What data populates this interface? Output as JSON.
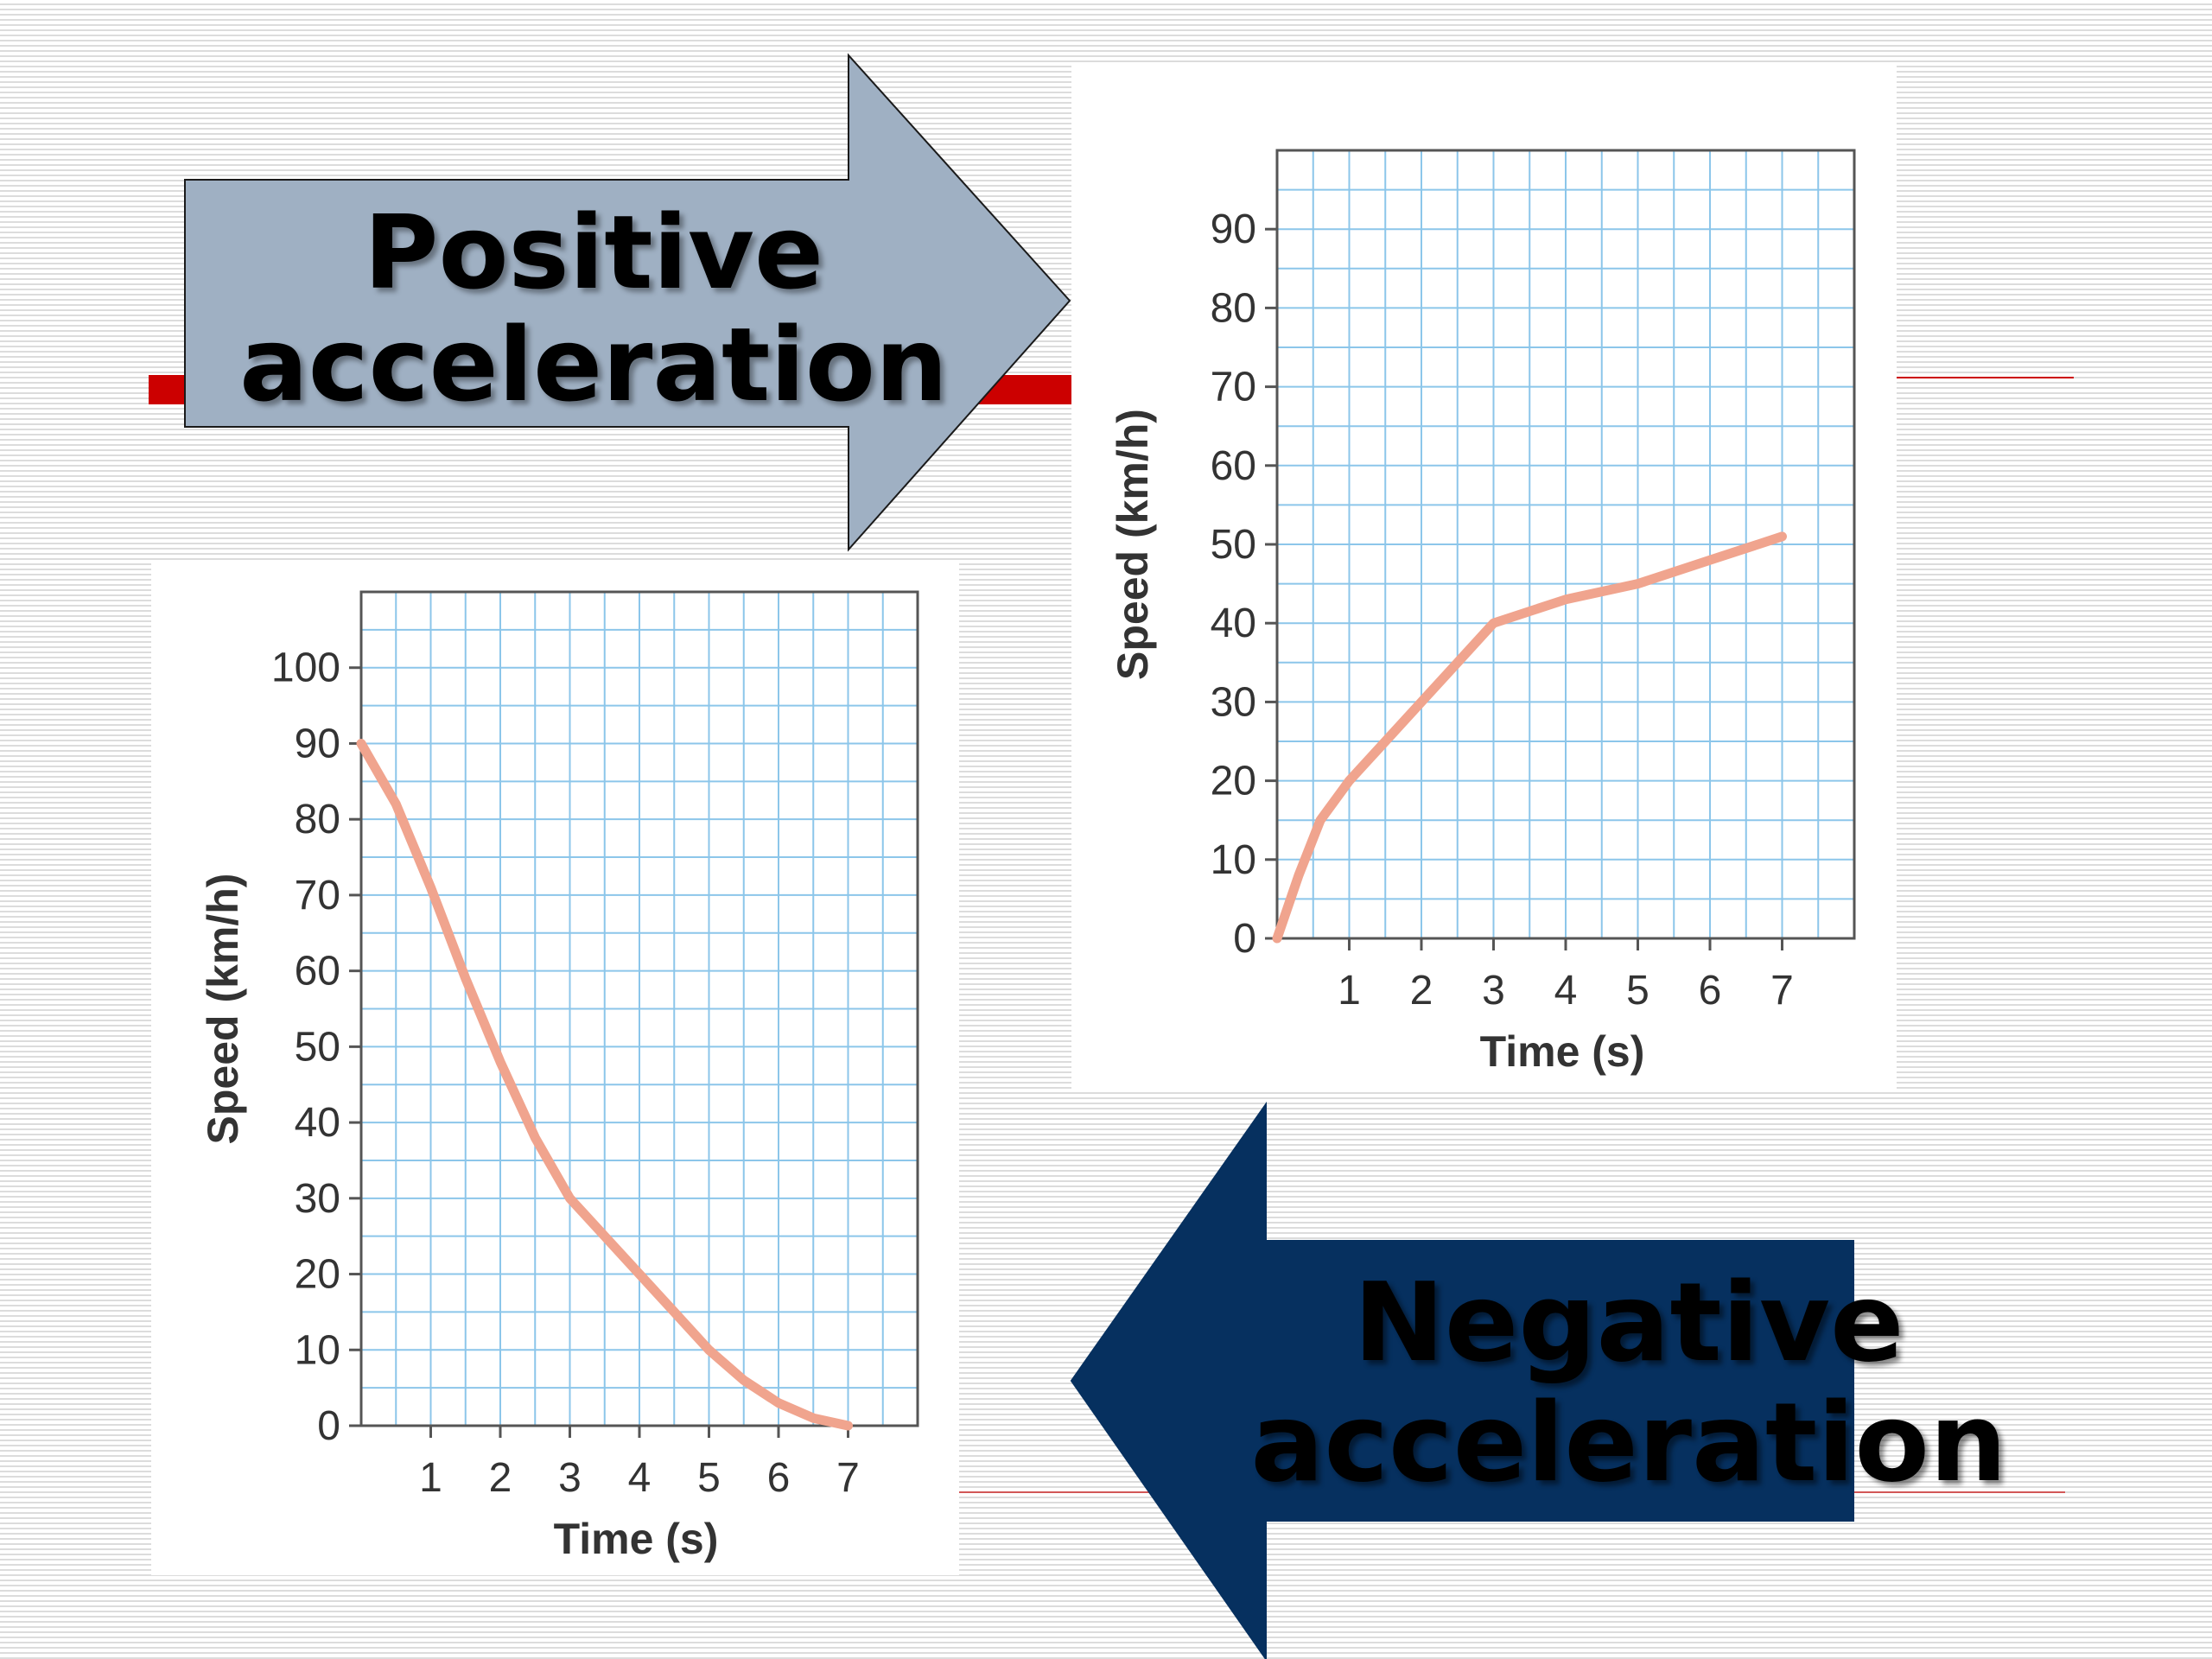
{
  "arrows": {
    "positive": {
      "line1": "Positive",
      "line2": "acceleration",
      "fill": "#9fb0c3"
    },
    "negative": {
      "line1": "Negative",
      "line2": "acceleration",
      "fill": "#06305f"
    }
  },
  "colors": {
    "grid": "#8cc6ea",
    "curve": "#f0a48e",
    "accent_line": "#cc0000"
  },
  "chart_data": [
    {
      "type": "line",
      "xlabel": "Time (s)",
      "ylabel": "Speed (km/h)",
      "x_ticks": [
        1,
        2,
        3,
        4,
        5,
        6,
        7
      ],
      "y_ticks": [
        0,
        10,
        20,
        30,
        40,
        50,
        60,
        70,
        80,
        90
      ],
      "xlim": [
        0,
        8
      ],
      "ylim": [
        0,
        100
      ],
      "grid": true,
      "series": [
        {
          "x": [
            0,
            0.3,
            0.6,
            1,
            1.5,
            2,
            2.5,
            3,
            4,
            5,
            6,
            7
          ],
          "y": [
            0,
            8,
            15,
            20,
            25,
            30,
            35,
            40,
            43,
            45,
            48,
            51
          ]
        }
      ]
    },
    {
      "type": "line",
      "xlabel": "Time (s)",
      "ylabel": "Speed (km/h)",
      "x_ticks": [
        1,
        2,
        3,
        4,
        5,
        6,
        7
      ],
      "y_ticks": [
        0,
        10,
        20,
        30,
        40,
        50,
        60,
        70,
        80,
        90,
        100
      ],
      "xlim": [
        0,
        8
      ],
      "ylim": [
        0,
        110
      ],
      "grid": true,
      "series": [
        {
          "x": [
            0,
            0.5,
            1,
            1.5,
            2,
            2.5,
            3,
            3.5,
            4,
            4.5,
            5,
            5.5,
            6,
            6.5,
            7
          ],
          "y": [
            90,
            82,
            71,
            59,
            48,
            38,
            30,
            25,
            20,
            15,
            10,
            6,
            3,
            1,
            0
          ]
        }
      ]
    }
  ]
}
